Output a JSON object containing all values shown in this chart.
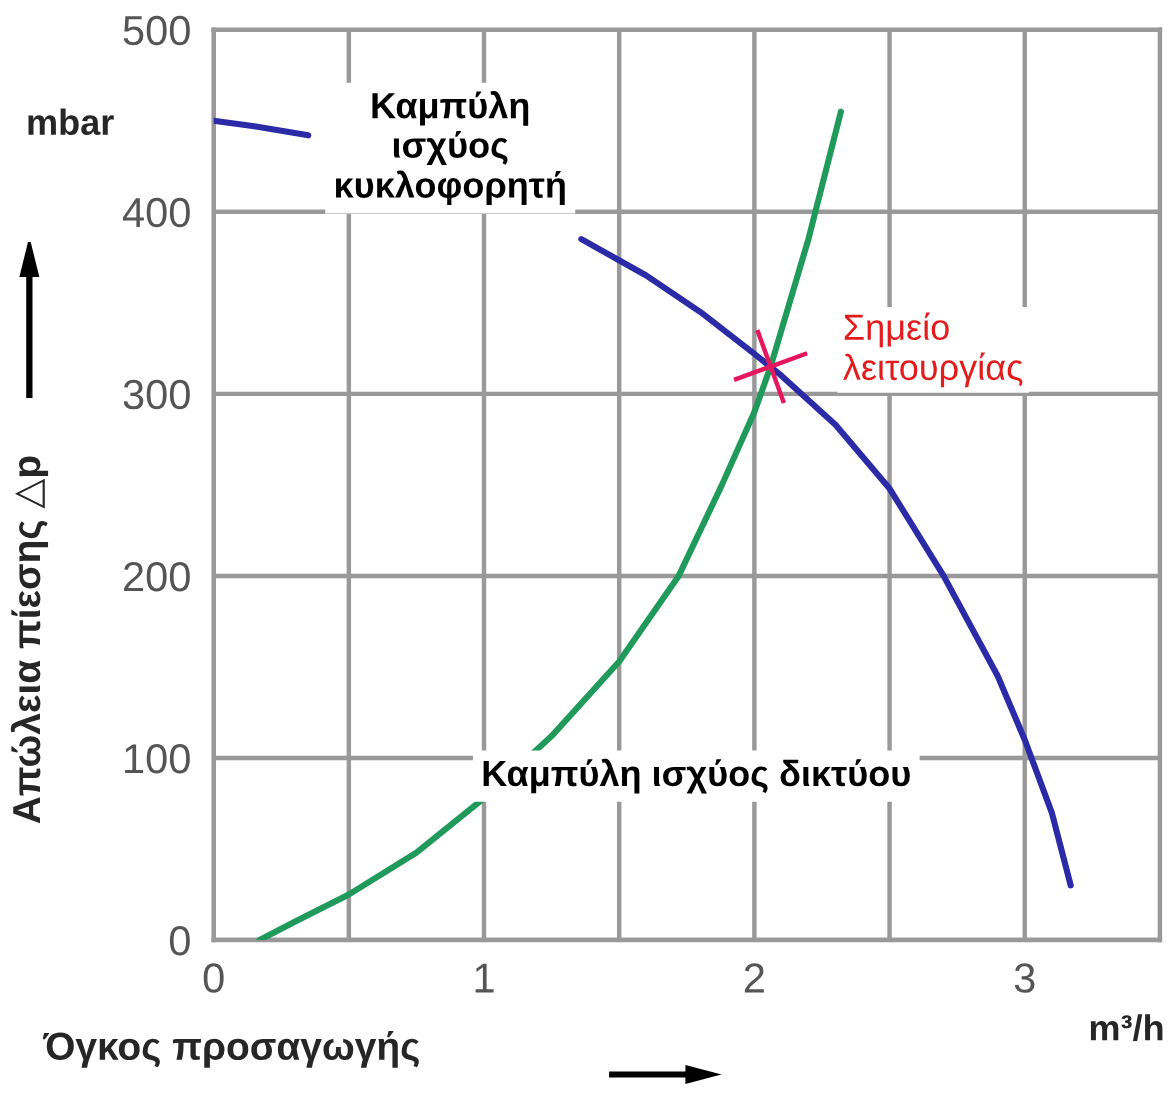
{
  "chart_data": {
    "type": "line",
    "xlabel": "Όγκος προσαγωγής",
    "ylabel": "Απώλεια πίεσης △p",
    "xlim": [
      0,
      3.5
    ],
    "ylim": [
      0,
      500
    ],
    "xticks": [
      0,
      {
        "value": 0.5,
        "label": null
      },
      1,
      {
        "value": 1.5,
        "label": null
      },
      2,
      {
        "value": 2.5,
        "label": null
      },
      3
    ],
    "yticks": [
      0,
      100,
      200,
      300,
      400,
      500
    ],
    "grid": true,
    "legend": false,
    "marker": "none",
    "line_style": "solid",
    "series": [
      {
        "name": "Καμπύλη\nισχύος\nκυκλοφορητή",
        "color": "#2b2ba8",
        "x": [
          0,
          0.15,
          0.35,
          0.9,
          1.36,
          1.6,
          1.8,
          2.0,
          2.1,
          2.3,
          2.5,
          2.7,
          2.9,
          3.0,
          3.1,
          3.17
        ],
        "values": [
          450,
          447,
          442,
          null,
          385,
          365,
          345,
          322,
          310,
          283,
          248,
          200,
          145,
          110,
          70,
          30
        ]
      },
      {
        "name": "Καμπύλη ισχύος δικτύου",
        "color": "#1f9a5a",
        "x": [
          0.17,
          0.3,
          0.5,
          0.75,
          1.0,
          1.25,
          1.5,
          1.72,
          1.88,
          2.0,
          2.06,
          2.2,
          2.32
        ],
        "values": [
          0,
          10,
          25,
          48,
          78,
          112,
          153,
          200,
          250,
          290,
          315,
          385,
          455
        ]
      }
    ],
    "annotations": [
      "mbar",
      "m³/h",
      {
        "text": "Σημείο\nλειτουργίας",
        "x": 2.06,
        "y": 315
      }
    ]
  }
}
